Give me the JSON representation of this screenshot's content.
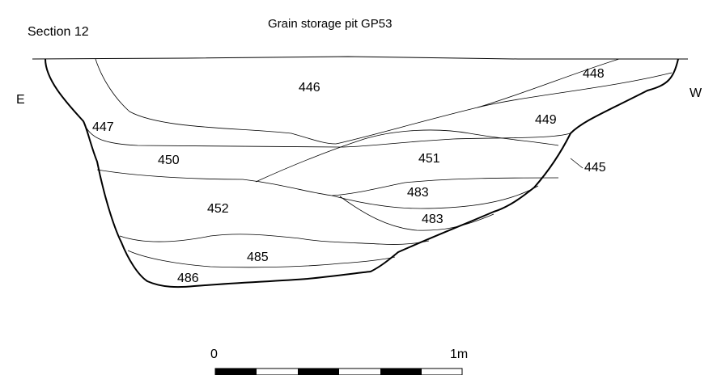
{
  "title": "Grain storage pit GP53",
  "section_label": "Section 12",
  "orientation": {
    "east": "E",
    "west": "W"
  },
  "contexts": {
    "c445": "445",
    "c446": "446",
    "c447": "447",
    "c448": "448",
    "c449": "449",
    "c450": "450",
    "c451": "451",
    "c452": "452",
    "c483a": "483",
    "c483b": "483",
    "c485": "485",
    "c486": "486"
  },
  "scale": {
    "start": "0",
    "end": "1m",
    "segments": 6
  },
  "colors": {
    "line": "#000000",
    "background": "#ffffff"
  }
}
